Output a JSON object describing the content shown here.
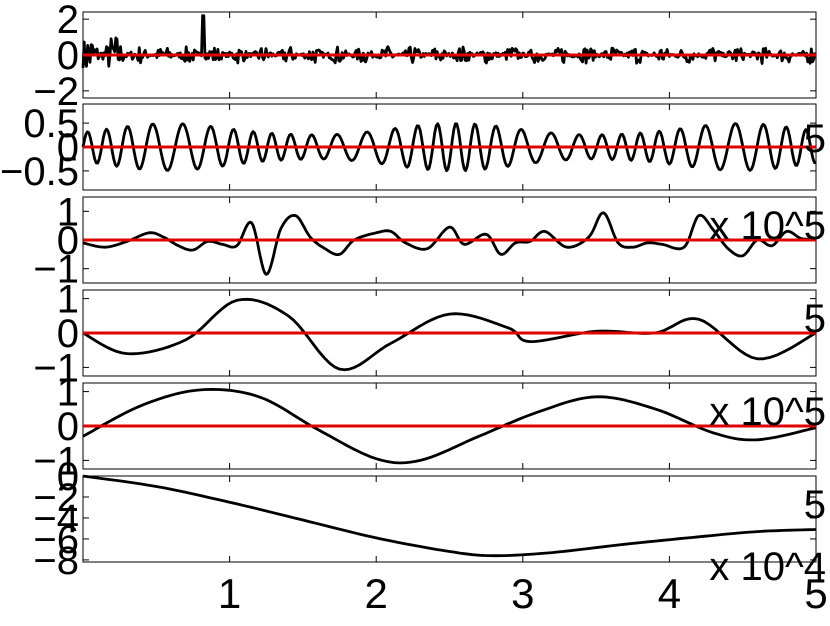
{
  "chart_data": [
    {
      "type": "line",
      "panel": 1,
      "ylim": [
        -2.4,
        2.4
      ],
      "xlim": [
        0,
        5
      ],
      "yticks": [
        -2,
        0,
        2
      ],
      "ytick_labels": [
        "−2",
        "0",
        "2"
      ],
      "series": [
        {
          "color": "#000000",
          "kind": "noisy-signal",
          "amplitude": 0.5,
          "burst_peak": 2.2,
          "burst_end_x": 0.3
        },
        {
          "color": "#e00000",
          "kind": "zero-line",
          "y": 0
        }
      ]
    },
    {
      "type": "line",
      "panel": 2,
      "ylim": [
        -0.9,
        0.9
      ],
      "xlim": [
        0,
        5
      ],
      "yticks": [
        -0.5,
        0,
        0.5
      ],
      "ytick_labels": [
        "−0.5",
        "0",
        "0.5"
      ],
      "exponent_label": "5",
      "series": [
        {
          "color": "#000000",
          "kind": "oscillation",
          "amplitude": 0.5
        },
        {
          "color": "#e00000",
          "kind": "zero-line",
          "y": 0
        }
      ]
    },
    {
      "type": "line",
      "panel": 3,
      "ylim": [
        -1.5,
        1.5
      ],
      "xlim": [
        0,
        5
      ],
      "yticks": [
        -1,
        0,
        1
      ],
      "ytick_labels": [
        "−1",
        "0",
        "1"
      ],
      "exponent_label": "x 10^5",
      "series": [
        {
          "color": "#000000",
          "kind": "oscillation",
          "points": [
            [
              0,
              -0.1
            ],
            [
              0.15,
              -0.25
            ],
            [
              0.3,
              -0.05
            ],
            [
              0.45,
              0.25
            ],
            [
              0.55,
              0.1
            ],
            [
              0.65,
              -0.2
            ],
            [
              0.75,
              -0.35
            ],
            [
              0.85,
              -0.05
            ],
            [
              0.95,
              -0.15
            ],
            [
              1.05,
              -0.2
            ],
            [
              1.15,
              0.6
            ],
            [
              1.25,
              -1.2
            ],
            [
              1.35,
              0.4
            ],
            [
              1.45,
              0.85
            ],
            [
              1.55,
              0.1
            ],
            [
              1.65,
              -0.3
            ],
            [
              1.75,
              -0.5
            ],
            [
              1.85,
              0.0
            ],
            [
              2.0,
              0.25
            ],
            [
              2.1,
              0.3
            ],
            [
              2.2,
              -0.1
            ],
            [
              2.35,
              -0.3
            ],
            [
              2.5,
              0.45
            ],
            [
              2.6,
              -0.15
            ],
            [
              2.75,
              0.2
            ],
            [
              2.85,
              -0.5
            ],
            [
              2.95,
              -0.1
            ],
            [
              3.05,
              -0.05
            ],
            [
              3.15,
              0.3
            ],
            [
              3.3,
              -0.25
            ],
            [
              3.45,
              0.1
            ],
            [
              3.55,
              0.95
            ],
            [
              3.65,
              -0.1
            ],
            [
              3.75,
              -0.25
            ],
            [
              3.85,
              -0.1
            ],
            [
              3.95,
              -0.15
            ],
            [
              4.1,
              -0.25
            ],
            [
              4.2,
              0.85
            ],
            [
              4.3,
              0.35
            ],
            [
              4.4,
              -0.3
            ],
            [
              4.5,
              -0.55
            ],
            [
              4.6,
              0.0
            ],
            [
              4.7,
              -0.2
            ],
            [
              4.8,
              0.3
            ],
            [
              4.9,
              0.05
            ],
            [
              5.0,
              0.05
            ]
          ]
        },
        {
          "color": "#e00000",
          "kind": "zero-line",
          "y": 0
        }
      ]
    },
    {
      "type": "line",
      "panel": 4,
      "ylim": [
        -1.25,
        1.25
      ],
      "xlim": [
        0,
        5
      ],
      "yticks": [
        -1,
        0,
        1
      ],
      "ytick_labels": [
        "−1",
        "0",
        "1"
      ],
      "exponent_label": "5",
      "series": [
        {
          "color": "#000000",
          "kind": "oscillation",
          "points": [
            [
              0,
              0
            ],
            [
              0.3,
              -0.6
            ],
            [
              0.7,
              -0.2
            ],
            [
              1.05,
              0.95
            ],
            [
              1.4,
              0.5
            ],
            [
              1.75,
              -1.05
            ],
            [
              2.1,
              -0.3
            ],
            [
              2.5,
              0.55
            ],
            [
              2.9,
              0.15
            ],
            [
              3.05,
              -0.25
            ],
            [
              3.5,
              0.05
            ],
            [
              3.9,
              0.0
            ],
            [
              4.2,
              0.4
            ],
            [
              4.6,
              -0.75
            ],
            [
              5.0,
              0.0
            ]
          ]
        },
        {
          "color": "#e00000",
          "kind": "zero-line",
          "y": 0
        }
      ]
    },
    {
      "type": "line",
      "panel": 5,
      "ylim": [
        -1.25,
        1.25
      ],
      "xlim": [
        0,
        5
      ],
      "yticks": [
        -1,
        0,
        1
      ],
      "ytick_labels": [
        "−1",
        "0",
        "1"
      ],
      "exponent_label": "x 10^5",
      "series": [
        {
          "color": "#000000",
          "kind": "oscillation",
          "points": [
            [
              0,
              -0.3
            ],
            [
              0.4,
              0.6
            ],
            [
              0.8,
              1.05
            ],
            [
              1.2,
              0.85
            ],
            [
              1.6,
              -0.1
            ],
            [
              2.0,
              -0.95
            ],
            [
              2.3,
              -1.0
            ],
            [
              2.7,
              -0.3
            ],
            [
              3.1,
              0.4
            ],
            [
              3.5,
              0.85
            ],
            [
              3.9,
              0.5
            ],
            [
              4.3,
              -0.2
            ],
            [
              4.6,
              -0.4
            ],
            [
              5.0,
              -0.05
            ]
          ]
        },
        {
          "color": "#e00000",
          "kind": "zero-line",
          "y": 0
        }
      ]
    },
    {
      "type": "line",
      "panel": 6,
      "ylim": [
        -8.2,
        0
      ],
      "xlim": [
        0,
        5
      ],
      "yticks": [
        -8,
        -6,
        -4,
        -2,
        0
      ],
      "ytick_labels": [
        "−8",
        "−6",
        "−4",
        "−2",
        "0"
      ],
      "exponent_label": "5",
      "xticks": [
        1,
        2,
        3,
        4,
        5
      ],
      "xtick_labels": [
        "1",
        "2",
        "3",
        "4",
        "5"
      ],
      "x_exponent_label": "x 10^4",
      "series": [
        {
          "color": "#000000",
          "kind": "trend",
          "points": [
            [
              0,
              0
            ],
            [
              0.5,
              -1.0
            ],
            [
              1.0,
              -2.5
            ],
            [
              1.5,
              -4.2
            ],
            [
              2.0,
              -5.9
            ],
            [
              2.5,
              -7.2
            ],
            [
              2.8,
              -7.6
            ],
            [
              3.2,
              -7.3
            ],
            [
              3.7,
              -6.5
            ],
            [
              4.2,
              -5.8
            ],
            [
              4.6,
              -5.3
            ],
            [
              5.0,
              -5.1
            ]
          ]
        }
      ]
    }
  ]
}
